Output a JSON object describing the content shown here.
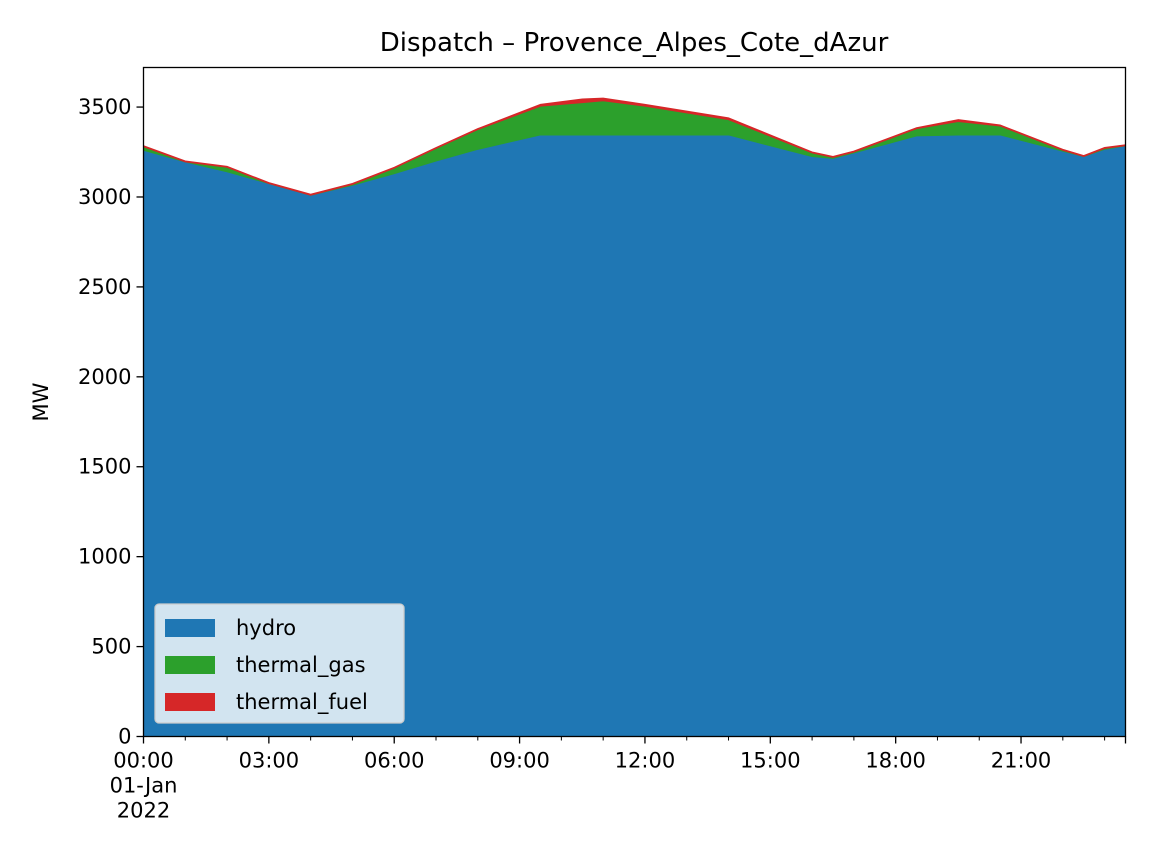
{
  "chart_data": {
    "type": "area",
    "stacked": true,
    "title": "Dispatch – Provence_Alpes_Cote_dAzur",
    "xlabel": "",
    "ylabel": "MW",
    "ylim": [
      0,
      3720
    ],
    "yticks": [
      0,
      500,
      1000,
      1500,
      2000,
      2500,
      3000,
      3500
    ],
    "xlim": [
      "00:00",
      "23:30"
    ],
    "xticks": [
      {
        "label": "00:00",
        "sublabel1": "01-Jan",
        "sublabel2": "2022",
        "x": "00:00"
      },
      {
        "label": "03:00",
        "x": "03:00"
      },
      {
        "label": "06:00",
        "x": "06:00"
      },
      {
        "label": "09:00",
        "x": "09:00"
      },
      {
        "label": "12:00",
        "x": "12:00"
      },
      {
        "label": "15:00",
        "x": "15:00"
      },
      {
        "label": "18:00",
        "x": "18:00"
      },
      {
        "label": "21:00",
        "x": "21:00"
      }
    ],
    "x": [
      "00:00",
      "01:00",
      "02:00",
      "03:00",
      "04:00",
      "05:00",
      "06:00",
      "07:00",
      "08:00",
      "09:30",
      "10:30",
      "11:00",
      "12:00",
      "14:00",
      "16:00",
      "16:30",
      "17:00",
      "18:30",
      "19:30",
      "20:30",
      "22:00",
      "22:30",
      "23:00",
      "23:30"
    ],
    "series": [
      {
        "name": "hydro",
        "color": "#1f77b4",
        "values": [
          3260,
          3195,
          3140,
          3075,
          3010,
          3065,
          3130,
          3200,
          3265,
          3345,
          3345,
          3345,
          3345,
          3345,
          3225,
          3215,
          3245,
          3340,
          3345,
          3345,
          3255,
          3225,
          3265,
          3285
        ]
      },
      {
        "name": "thermal_gas",
        "color": "#2ca02c",
        "values": [
          20,
          0,
          25,
          0,
          0,
          5,
          30,
          70,
          110,
          160,
          180,
          190,
          160,
          85,
          20,
          5,
          5,
          40,
          75,
          50,
          5,
          0,
          5,
          0
        ]
      },
      {
        "name": "thermal_fuel",
        "color": "#d62728",
        "values": [
          5,
          5,
          5,
          5,
          5,
          5,
          5,
          5,
          5,
          10,
          20,
          15,
          10,
          10,
          5,
          5,
          5,
          5,
          10,
          5,
          5,
          5,
          5,
          5
        ]
      }
    ],
    "legend": {
      "position": "lower-left",
      "entries": [
        "hydro",
        "thermal_gas",
        "thermal_fuel"
      ]
    },
    "grid": false
  }
}
